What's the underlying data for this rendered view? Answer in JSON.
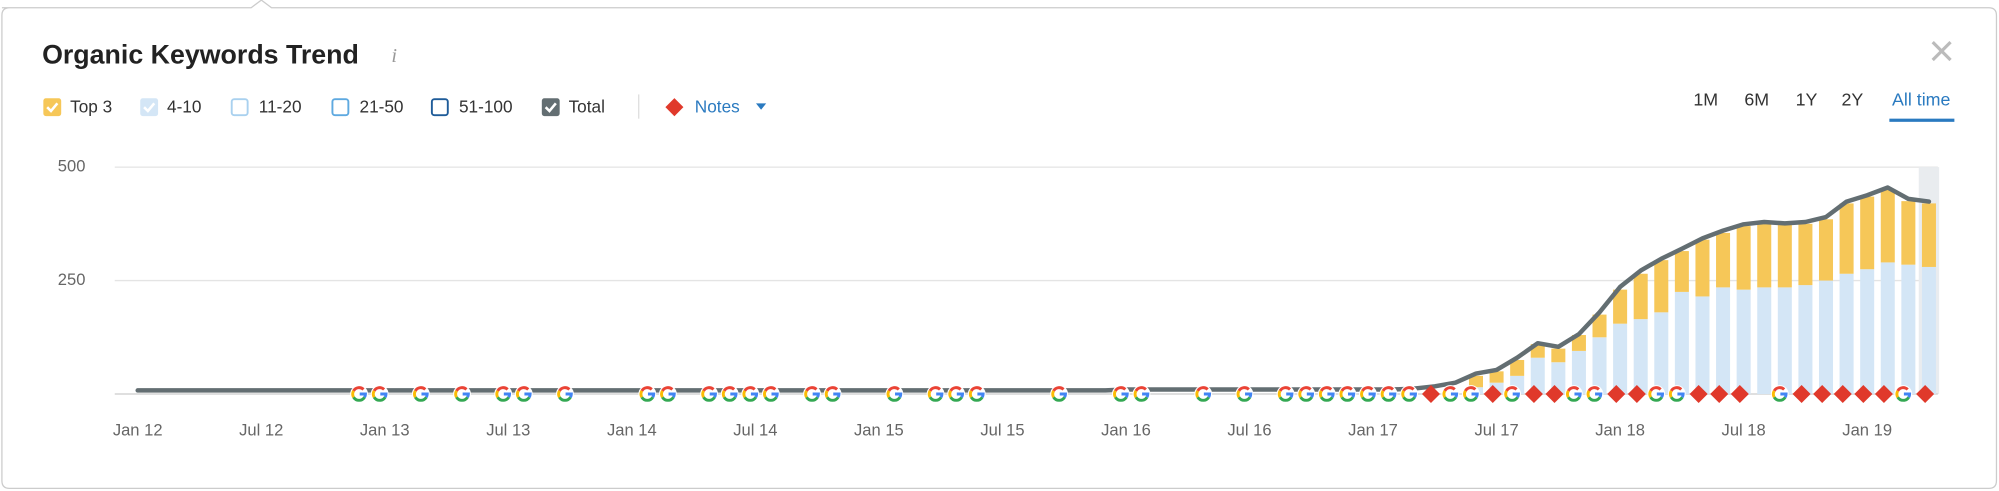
{
  "chart_data": {
    "type": "bar",
    "title": "Organic Keywords Trend",
    "info_icon": "i",
    "categories": [
      "Jan 12",
      null,
      null,
      null,
      null,
      null,
      "Jul 12",
      null,
      null,
      null,
      null,
      null,
      "Jan 13",
      null,
      null,
      null,
      null,
      null,
      "Jul 13",
      null,
      null,
      null,
      null,
      null,
      "Jan 14",
      null,
      null,
      null,
      null,
      null,
      "Jul 14",
      null,
      null,
      null,
      null,
      null,
      "Jan 15",
      null,
      null,
      null,
      null,
      null,
      "Jul 15",
      null,
      null,
      null,
      null,
      null,
      "Jan 16",
      null,
      null,
      null,
      null,
      null,
      "Jul 16",
      null,
      null,
      null,
      null,
      null,
      "Jan 17",
      null,
      null,
      null,
      null,
      null,
      "Jul 17",
      null,
      null,
      null,
      null,
      null,
      "Jan 18",
      null,
      null,
      null,
      null,
      null,
      "Jul 18",
      null,
      null,
      null,
      null,
      null,
      "Jan 19",
      null,
      null,
      null
    ],
    "series": [
      {
        "name": "Top 3",
        "color": "#f6c758",
        "stack": true,
        "values": [
          null,
          null,
          null,
          null,
          null,
          null,
          null,
          null,
          null,
          null,
          null,
          null,
          null,
          null,
          null,
          null,
          null,
          null,
          null,
          null,
          null,
          null,
          null,
          null,
          null,
          null,
          null,
          null,
          null,
          null,
          null,
          null,
          null,
          null,
          null,
          null,
          null,
          null,
          null,
          null,
          null,
          null,
          null,
          null,
          null,
          null,
          null,
          null,
          null,
          null,
          null,
          null,
          null,
          null,
          null,
          null,
          null,
          null,
          null,
          null,
          null,
          null,
          null,
          null,
          null,
          25,
          25,
          35,
          30,
          30,
          35,
          50,
          75,
          100,
          115,
          90,
          125,
          120,
          140,
          140,
          138,
          135,
          135,
          155,
          160,
          160,
          140,
          140
        ]
      },
      {
        "name": "4-10",
        "color": "#d4e6f6",
        "stack": true,
        "values": [
          null,
          null,
          null,
          null,
          null,
          null,
          null,
          null,
          null,
          null,
          null,
          null,
          null,
          null,
          null,
          null,
          null,
          null,
          null,
          null,
          null,
          null,
          null,
          null,
          null,
          null,
          null,
          null,
          null,
          null,
          null,
          null,
          null,
          null,
          null,
          null,
          null,
          null,
          null,
          null,
          null,
          null,
          null,
          null,
          null,
          null,
          null,
          null,
          null,
          null,
          null,
          null,
          null,
          null,
          null,
          null,
          null,
          null,
          null,
          null,
          null,
          null,
          null,
          null,
          null,
          15,
          25,
          40,
          80,
          70,
          95,
          125,
          155,
          165,
          180,
          225,
          215,
          235,
          230,
          235,
          235,
          240,
          250,
          265,
          275,
          290,
          285,
          280
        ]
      },
      {
        "name": "Total",
        "color": "#636e72",
        "line": true,
        "values": [
          8,
          8,
          8,
          8,
          8,
          8,
          8,
          8,
          8,
          8,
          8,
          8,
          8,
          8,
          8,
          8,
          8,
          8,
          8,
          8,
          8,
          8,
          8,
          8,
          8,
          8,
          8,
          8,
          8,
          8,
          8,
          8,
          8,
          8,
          8,
          8,
          8,
          8,
          8,
          8,
          8,
          8,
          8,
          8,
          8,
          8,
          8,
          8,
          10,
          10,
          10,
          10,
          10,
          10,
          10,
          10,
          10,
          10,
          10,
          10,
          10,
          10,
          12,
          17,
          25,
          45,
          53,
          80,
          112,
          104,
          132,
          180,
          236,
          272,
          298,
          320,
          343,
          360,
          374,
          379,
          376,
          379,
          390,
          424,
          438,
          455,
          430,
          424
        ]
      }
    ],
    "inactive_series": [
      {
        "name": "11-20",
        "color": "#a9d1ef"
      },
      {
        "name": "21-50",
        "color": "#5ea9e0"
      },
      {
        "name": "51-100",
        "color": "#1f5c99"
      }
    ],
    "notes_label": "Notes",
    "notes_color": "#e0392b",
    "ranges": [
      "1M",
      "6M",
      "1Y",
      "2Y",
      "All time"
    ],
    "active_range": 4,
    "ylim": [
      0,
      500
    ],
    "yticks": [
      250,
      500
    ],
    "grid": true
  }
}
